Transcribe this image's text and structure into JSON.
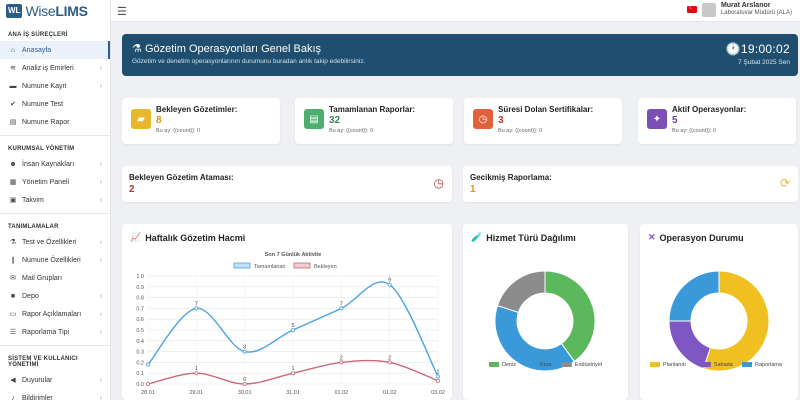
{
  "app": {
    "logo_badge": "WL",
    "logo_prefix": "Wise",
    "logo_suffix": "LIMS"
  },
  "user": {
    "name": "Murat Arslanor",
    "role": "Laboratuvar Müdürü (ALA)"
  },
  "sidebar": {
    "sections": [
      {
        "title": "ANA İŞ SÜREÇLERİ",
        "items": [
          {
            "label": "Anasayfa",
            "icon": "home-icon",
            "active": true
          },
          {
            "label": "Analiz iş Emirleri",
            "icon": "wifi-icon",
            "chev": true
          },
          {
            "label": "Numune Kayıt",
            "icon": "truck-icon",
            "chev": true
          },
          {
            "label": "Numune Test",
            "icon": "check-icon",
            "chev": false
          },
          {
            "label": "Numune Rapor",
            "icon": "file-icon",
            "chev": false
          }
        ]
      },
      {
        "title": "KURUMSAL YÖNETİM",
        "items": [
          {
            "label": "İnsan Kaynakları",
            "icon": "users-icon",
            "chev": true
          },
          {
            "label": "Yönetim Paneli",
            "icon": "panel-icon",
            "chev": true
          },
          {
            "label": "Takvim",
            "icon": "calendar-icon",
            "chev": true
          }
        ]
      },
      {
        "title": "TANIMLAMALAR",
        "items": [
          {
            "label": "Test ve Özellikleri",
            "icon": "flask-icon",
            "chev": true
          },
          {
            "label": "Numune Özellikleri",
            "icon": "tube-icon",
            "chev": true
          },
          {
            "label": "Mail Grupları",
            "icon": "mail-icon",
            "chev": false
          },
          {
            "label": "Depo",
            "icon": "box-icon",
            "chev": true
          },
          {
            "label": "Rapor Açıklamaları",
            "icon": "comment-icon",
            "chev": true
          },
          {
            "label": "Raporlama Tipi",
            "icon": "list-icon",
            "chev": true
          }
        ]
      },
      {
        "title": "SİSTEM VE KULLANICI YÖNETİMİ",
        "items": [
          {
            "label": "Duyurular",
            "icon": "megaphone-icon",
            "chev": true
          },
          {
            "label": "Bildirimler",
            "icon": "bell-icon",
            "chev": true
          }
        ]
      }
    ]
  },
  "hero": {
    "title": "Gözetim Operasyonları Genel Bakış",
    "subtitle": "Gözetim ve denetim operasyonlarının durumunu buradan anlık takip edebilirsiniz.",
    "time": "19:00:02",
    "date": "7 Şubat 2025 Sen"
  },
  "stats": [
    {
      "title": "Bekleyen Gözetimler:",
      "value": "8",
      "sub": "Bu ay: {{count}}: 0",
      "color": "#e8b72c",
      "value_color": "#d19a10",
      "icon": "folder-icon"
    },
    {
      "title": "Tamamlanan Raporlar:",
      "value": "32",
      "sub": "Bu ay: {{count}}: 0",
      "color": "#4caf6e",
      "value_color": "#2e8b57",
      "icon": "document-icon"
    },
    {
      "title": "Süresi Dolan Sertifikalar:",
      "value": "3",
      "sub": "Bu ay: {{count}}: 0",
      "color": "#e0623c",
      "value_color": "#c0392b",
      "icon": "clock-icon"
    },
    {
      "title": "Aktif Operasyonlar:",
      "value": "5",
      "sub": "Bu ay: {{count}}: 0",
      "color": "#7b4fb5",
      "value_color": "#6a3fa8",
      "icon": "worker-icon"
    }
  ],
  "wide": [
    {
      "title": "Bekleyen Gözetim Ataması:",
      "value": "2",
      "value_color": "#b03a2e",
      "icon_color": "#b03a2e"
    },
    {
      "title": "Gecikmiş Raporlama:",
      "value": "1",
      "value_color": "#d19a10",
      "icon_color": "#e8b72c"
    }
  ],
  "weekly": {
    "title": "Haftalık Gözetim Hacmi",
    "chart_title": "Son 7 Günlük Aktivite",
    "legend": [
      "Tamamlanan",
      "Bekleyen"
    ]
  },
  "service": {
    "title": "Hizmet Türü Dağılımı",
    "legend": [
      "Deniz",
      "Kara",
      "Endüstriyel"
    ]
  },
  "ops": {
    "title": "Operasyon Durumu",
    "legend": [
      "Planlandı",
      "Sahada",
      "Raporlama"
    ]
  },
  "chart_data": [
    {
      "type": "line",
      "title": "Son 7 Günlük Aktivite",
      "categories": [
        "28.01",
        "29.01",
        "30.01",
        "31.01",
        "01.02",
        "01.02",
        "03.02"
      ],
      "ylim": [
        0,
        1.0
      ],
      "yticks": [
        0,
        0.1,
        0.2,
        0.3,
        0.4,
        0.5,
        0.6,
        0.7,
        0.8,
        0.9,
        1.0
      ],
      "grid": true,
      "legend_position": "top",
      "series": [
        {
          "name": "Tamamlanan",
          "color": "#4aa3df",
          "values": [
            0.18,
            0.7,
            0.3,
            0.5,
            0.7,
            0.92,
            0.07
          ],
          "labels": [
            "",
            "7",
            "3",
            "5",
            "7",
            "9",
            "1"
          ]
        },
        {
          "name": "Bekleyen",
          "color": "#c96a78",
          "values": [
            0,
            0.1,
            0.0,
            0.1,
            0.2,
            0.2,
            0.03
          ],
          "labels": [
            "",
            "1",
            "0",
            "1",
            "2",
            "2",
            ""
          ]
        }
      ]
    },
    {
      "type": "pie",
      "title": "Hizmet Türü Dağılımı",
      "categories": [
        "Deniz",
        "Kara",
        "Endüstriyel"
      ],
      "values": [
        40,
        40,
        20
      ],
      "colors": [
        "#5cb85c",
        "#3a9ad9",
        "#8c8c8c"
      ]
    },
    {
      "type": "pie",
      "title": "Operasyon Durumu",
      "categories": [
        "Planlandı",
        "Sahada",
        "Raporlama"
      ],
      "values": [
        55,
        20,
        25
      ],
      "colors": [
        "#f0c020",
        "#7e57c2",
        "#3a9ad9"
      ]
    }
  ]
}
